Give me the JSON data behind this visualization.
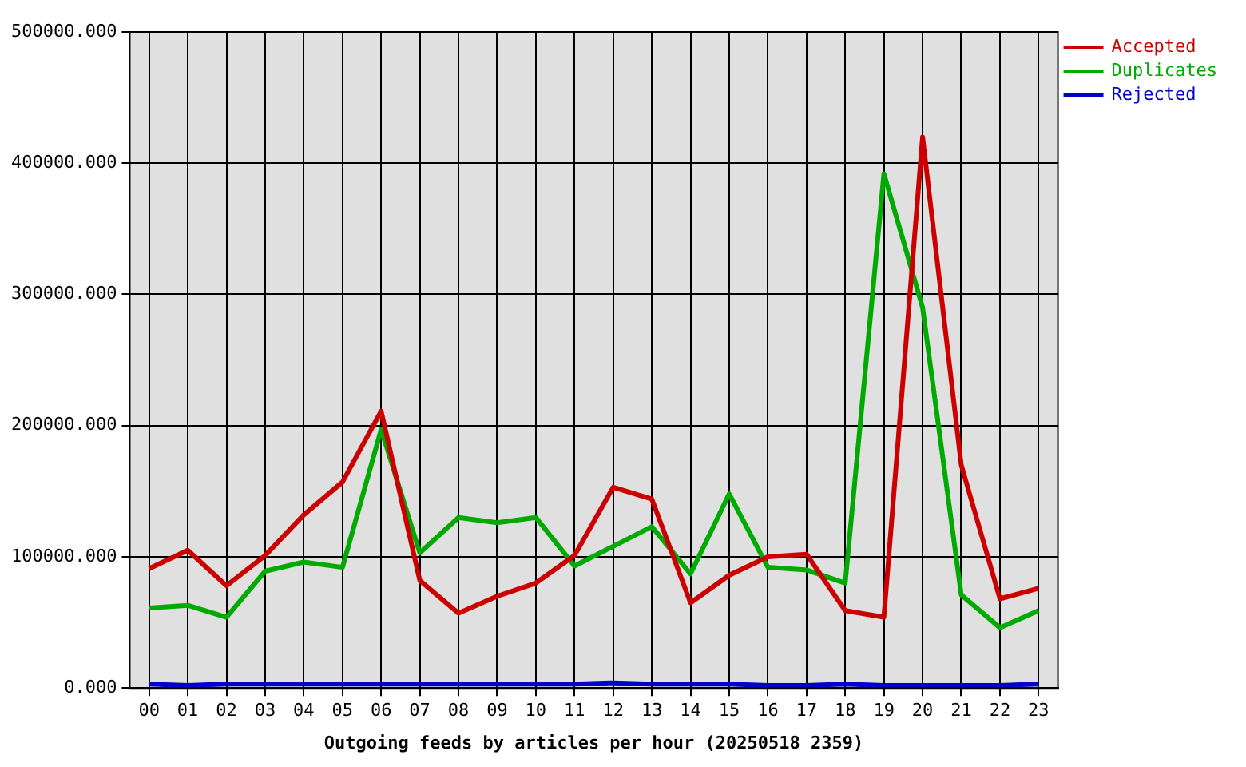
{
  "chart_data": {
    "type": "line",
    "xlabel": "Outgoing feeds by articles per hour (20250518 2359)",
    "categories": [
      "00",
      "01",
      "02",
      "03",
      "04",
      "05",
      "06",
      "07",
      "08",
      "09",
      "10",
      "11",
      "12",
      "13",
      "14",
      "15",
      "16",
      "17",
      "18",
      "19",
      "20",
      "21",
      "22",
      "23"
    ],
    "series": [
      {
        "name": "Accepted",
        "color": "#cc0000",
        "values": [
          91000,
          105000,
          78000,
          101000,
          132000,
          157000,
          211000,
          82000,
          57000,
          70000,
          80000,
          101000,
          153000,
          144000,
          65000,
          86000,
          100000,
          102000,
          59000,
          54000,
          420000,
          170000,
          68000,
          76000
        ]
      },
      {
        "name": "Duplicates",
        "color": "#00aa00",
        "values": [
          61000,
          63000,
          54000,
          89000,
          96000,
          92000,
          197000,
          103000,
          130000,
          126000,
          130000,
          93000,
          108000,
          123000,
          87000,
          148000,
          92000,
          90000,
          80000,
          392000,
          290000,
          71000,
          46000,
          59000
        ]
      },
      {
        "name": "Rejected",
        "color": "#0000cc",
        "values": [
          3000,
          2000,
          3000,
          3000,
          3000,
          3000,
          3000,
          3000,
          3000,
          3000,
          3000,
          3000,
          4000,
          3000,
          3000,
          3000,
          2000,
          2000,
          3000,
          2000,
          2000,
          2000,
          2000,
          3000
        ]
      }
    ],
    "ylim": [
      0,
      500000
    ],
    "yticks": [
      {
        "value": 0,
        "label": "0.000"
      },
      {
        "value": 100000,
        "label": "100000.000"
      },
      {
        "value": 200000,
        "label": "200000.000"
      },
      {
        "value": 300000,
        "label": "300000.000"
      },
      {
        "value": 400000,
        "label": "400000.000"
      },
      {
        "value": 500000,
        "label": "500000.000"
      }
    ],
    "grid": true,
    "legend": "top right",
    "marker": "none",
    "line_style": "solid"
  }
}
